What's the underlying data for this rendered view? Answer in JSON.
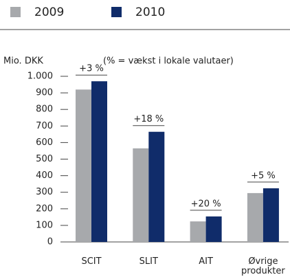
{
  "chart_data": {
    "type": "bar",
    "subtitle": "(% = vækst i lokale valutaer)",
    "y_axis_label": "Mio. DKK",
    "categories": [
      "SCIT",
      "SLIT",
      "AIT",
      "Øvrige produkter"
    ],
    "series": [
      {
        "name": "2009",
        "color": "#a7a9ac",
        "values": [
          920,
          565,
          124,
          295
        ]
      },
      {
        "name": "2010",
        "color": "#102c6a",
        "values": [
          970,
          665,
          154,
          324
        ]
      }
    ],
    "annotations": [
      "+3 %",
      "+18 %",
      "+20 %",
      "+5 %"
    ],
    "ylim": [
      0,
      1000
    ],
    "yticks": [
      0,
      100,
      200,
      300,
      400,
      500,
      600,
      700,
      800,
      900,
      {
        "value": 1000,
        "label": "1.000"
      }
    ]
  }
}
